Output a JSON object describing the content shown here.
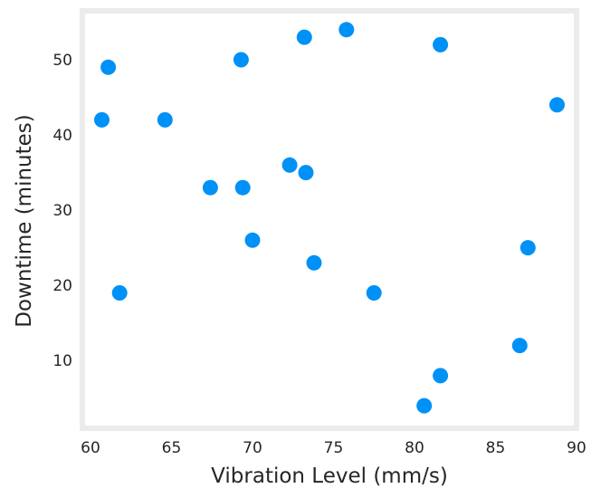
{
  "chart_data": {
    "type": "scatter",
    "title": "",
    "xlabel": "Vibration Level (mm/s)",
    "ylabel": "Downtime (minutes)",
    "xlim": [
      59.5,
      90
    ],
    "ylim": [
      1,
      56.5
    ],
    "x_ticks": [
      60,
      65,
      70,
      75,
      80,
      85,
      90
    ],
    "y_ticks": [
      10,
      20,
      30,
      40,
      50
    ],
    "x_tick_labels": [
      "60",
      "65",
      "70",
      "75",
      "80",
      "85",
      "90"
    ],
    "y_tick_labels": [
      "10",
      "20",
      "30",
      "40",
      "50"
    ],
    "grid": false,
    "colors": {
      "marker": "#0091f7",
      "frame": "#ebebeb",
      "background": "#ffffff"
    },
    "series": [
      {
        "points": [
          {
            "x": 60.7,
            "y": 42
          },
          {
            "x": 61.1,
            "y": 49
          },
          {
            "x": 61.8,
            "y": 19
          },
          {
            "x": 64.6,
            "y": 42
          },
          {
            "x": 67.4,
            "y": 33
          },
          {
            "x": 69.3,
            "y": 50
          },
          {
            "x": 69.4,
            "y": 33
          },
          {
            "x": 70.0,
            "y": 26
          },
          {
            "x": 72.3,
            "y": 36
          },
          {
            "x": 73.2,
            "y": 53
          },
          {
            "x": 73.3,
            "y": 35
          },
          {
            "x": 73.8,
            "y": 23
          },
          {
            "x": 75.8,
            "y": 54
          },
          {
            "x": 77.5,
            "y": 19
          },
          {
            "x": 80.6,
            "y": 4
          },
          {
            "x": 81.6,
            "y": 52
          },
          {
            "x": 81.6,
            "y": 8
          },
          {
            "x": 86.5,
            "y": 12
          },
          {
            "x": 87.0,
            "y": 25
          },
          {
            "x": 88.8,
            "y": 44
          }
        ]
      }
    ]
  }
}
